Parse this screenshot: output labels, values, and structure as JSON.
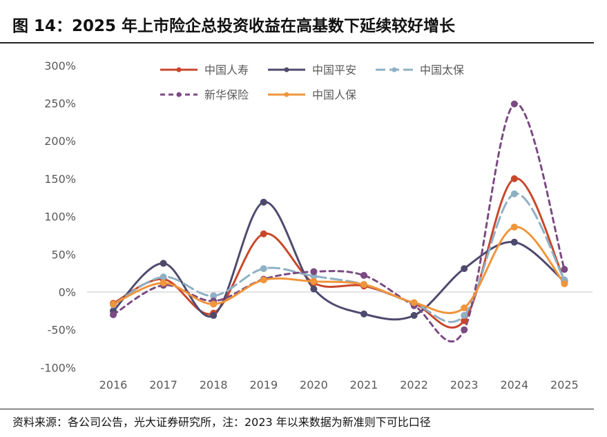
{
  "title": "图 14：2025 年上市险企总投资收益在高基数下延续较好增长",
  "source": "资料来源：各公司公告，光大证券研究所，注：2023 年以来数据为新准则下可比口径",
  "chart_data": {
    "type": "line",
    "title": "图 14：2025 年上市险企总投资收益在高基数下延续较好增长",
    "xlabel": "",
    "ylabel": "",
    "x": [
      "2016",
      "2017",
      "2018",
      "2019",
      "2020",
      "2021",
      "2022",
      "2023",
      "2024",
      "2025"
    ],
    "ylim": [
      -100,
      300
    ],
    "yticks": [
      -100,
      -50,
      0,
      50,
      100,
      150,
      200,
      250,
      300
    ],
    "ytick_labels": [
      "-100%",
      "-50%",
      "0%",
      "50%",
      "100%",
      "150%",
      "200%",
      "250%",
      "300%"
    ],
    "legend_position": "top-center",
    "series": [
      {
        "name": "中国人寿",
        "color": "#c8472b",
        "dash": "solid",
        "values": [
          -15,
          17,
          -28,
          77,
          12,
          8,
          -15,
          -38,
          150,
          15
        ]
      },
      {
        "name": "中国平安",
        "color": "#4e4a6e",
        "dash": "solid",
        "values": [
          -25,
          38,
          -31,
          119,
          4,
          -29,
          -31,
          31,
          66,
          14
        ]
      },
      {
        "name": "中国太保",
        "color": "#8fb0c4",
        "dash": "longdash",
        "values": [
          -17,
          20,
          -5,
          31,
          21,
          10,
          -15,
          -31,
          130,
          16
        ]
      },
      {
        "name": "新华保险",
        "color": "#7a4a82",
        "dash": "shortdash",
        "values": [
          -30,
          9,
          -12,
          17,
          27,
          22,
          -18,
          -50,
          249,
          30
        ]
      },
      {
        "name": "中国人保",
        "color": "#f0953a",
        "dash": "solid",
        "values": [
          -16,
          12,
          -16,
          16,
          14,
          10,
          -14,
          -21,
          86,
          11
        ]
      }
    ]
  }
}
